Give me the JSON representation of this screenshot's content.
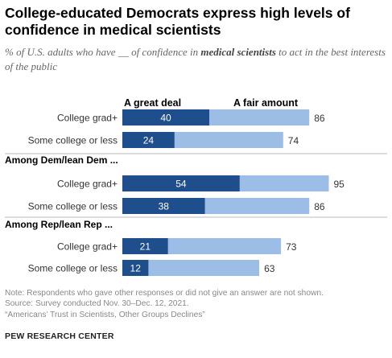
{
  "title": "College-educated Democrats express high levels of confidence in medical scientists",
  "subtitle": {
    "prefix": "% of U.S. adults who have __ of confidence in ",
    "emphasis": "medical scientists",
    "suffix": " to act in the best interests of the public"
  },
  "notes": [
    "Note: Respondents who gave other responses or did not give an answer are not shown.",
    "Source: Survey conducted Nov. 30–Dec. 12, 2021.",
    "“Americans’ Trust in Scientists, Other Groups Declines”"
  ],
  "org": "PEW RESEARCH CENTER",
  "colors": {
    "great_deal": "#1f4e8c",
    "fair_amount": "#9cbde6"
  },
  "chart_data": {
    "type": "bar",
    "orientation": "horizontal",
    "stacked": true,
    "series": [
      {
        "name": "A great deal",
        "color": "#1f4e8c"
      },
      {
        "name": "A fair amount",
        "color": "#9cbde6"
      }
    ],
    "xlim": [
      0,
      100
    ],
    "groups": [
      {
        "label": "",
        "rows": [
          {
            "category": "College grad+",
            "great_deal": 40,
            "total": 86
          },
          {
            "category": "Some college or less",
            "great_deal": 24,
            "total": 74
          }
        ]
      },
      {
        "label": "Among Dem/lean Dem ...",
        "rows": [
          {
            "category": "College grad+",
            "great_deal": 54,
            "total": 95
          },
          {
            "category": "Some college or less",
            "great_deal": 38,
            "total": 86
          }
        ]
      },
      {
        "label": "Among Rep/lean Rep ...",
        "rows": [
          {
            "category": "College grad+",
            "great_deal": 21,
            "total": 73
          },
          {
            "category": "Some college or less",
            "great_deal": 12,
            "total": 63
          }
        ]
      }
    ]
  }
}
